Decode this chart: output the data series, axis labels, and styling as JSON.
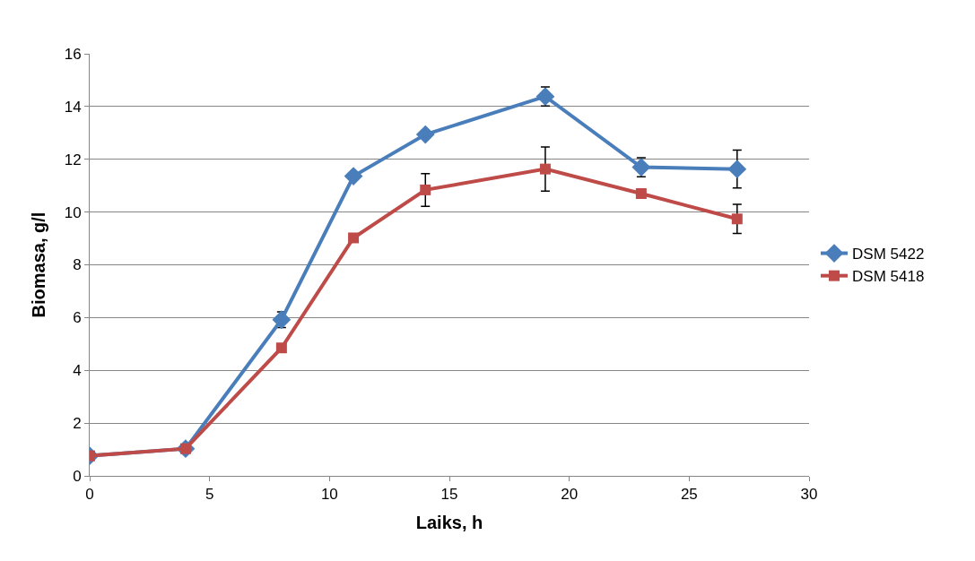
{
  "chart_data": {
    "type": "line",
    "xlabel": "Laiks, h",
    "ylabel": "Biomasa, g/l",
    "x": [
      0,
      4,
      8,
      11,
      14,
      19,
      23,
      27
    ],
    "xlim": [
      0,
      30
    ],
    "xticks": [
      0,
      5,
      10,
      15,
      20,
      25,
      30
    ],
    "ylim": [
      0,
      16
    ],
    "yticks": [
      0,
      2,
      4,
      6,
      8,
      10,
      12,
      14,
      16
    ],
    "grid": "y",
    "legend": "right",
    "series": [
      {
        "name": "DSM 5422",
        "color": "#4a7ebb",
        "marker": "diamond",
        "values": [
          0.76,
          1.03,
          5.92,
          11.36,
          12.94,
          14.38,
          11.7,
          11.63
        ],
        "errors": [
          null,
          null,
          0.3,
          null,
          null,
          0.36,
          0.36,
          0.72
        ]
      },
      {
        "name": "DSM 5418",
        "color": "#be4b48",
        "marker": "square",
        "values": [
          0.76,
          1.03,
          4.85,
          9.02,
          10.84,
          11.63,
          10.7,
          9.74
        ],
        "errors": [
          null,
          null,
          null,
          null,
          0.62,
          0.84,
          null,
          0.55
        ]
      }
    ]
  }
}
